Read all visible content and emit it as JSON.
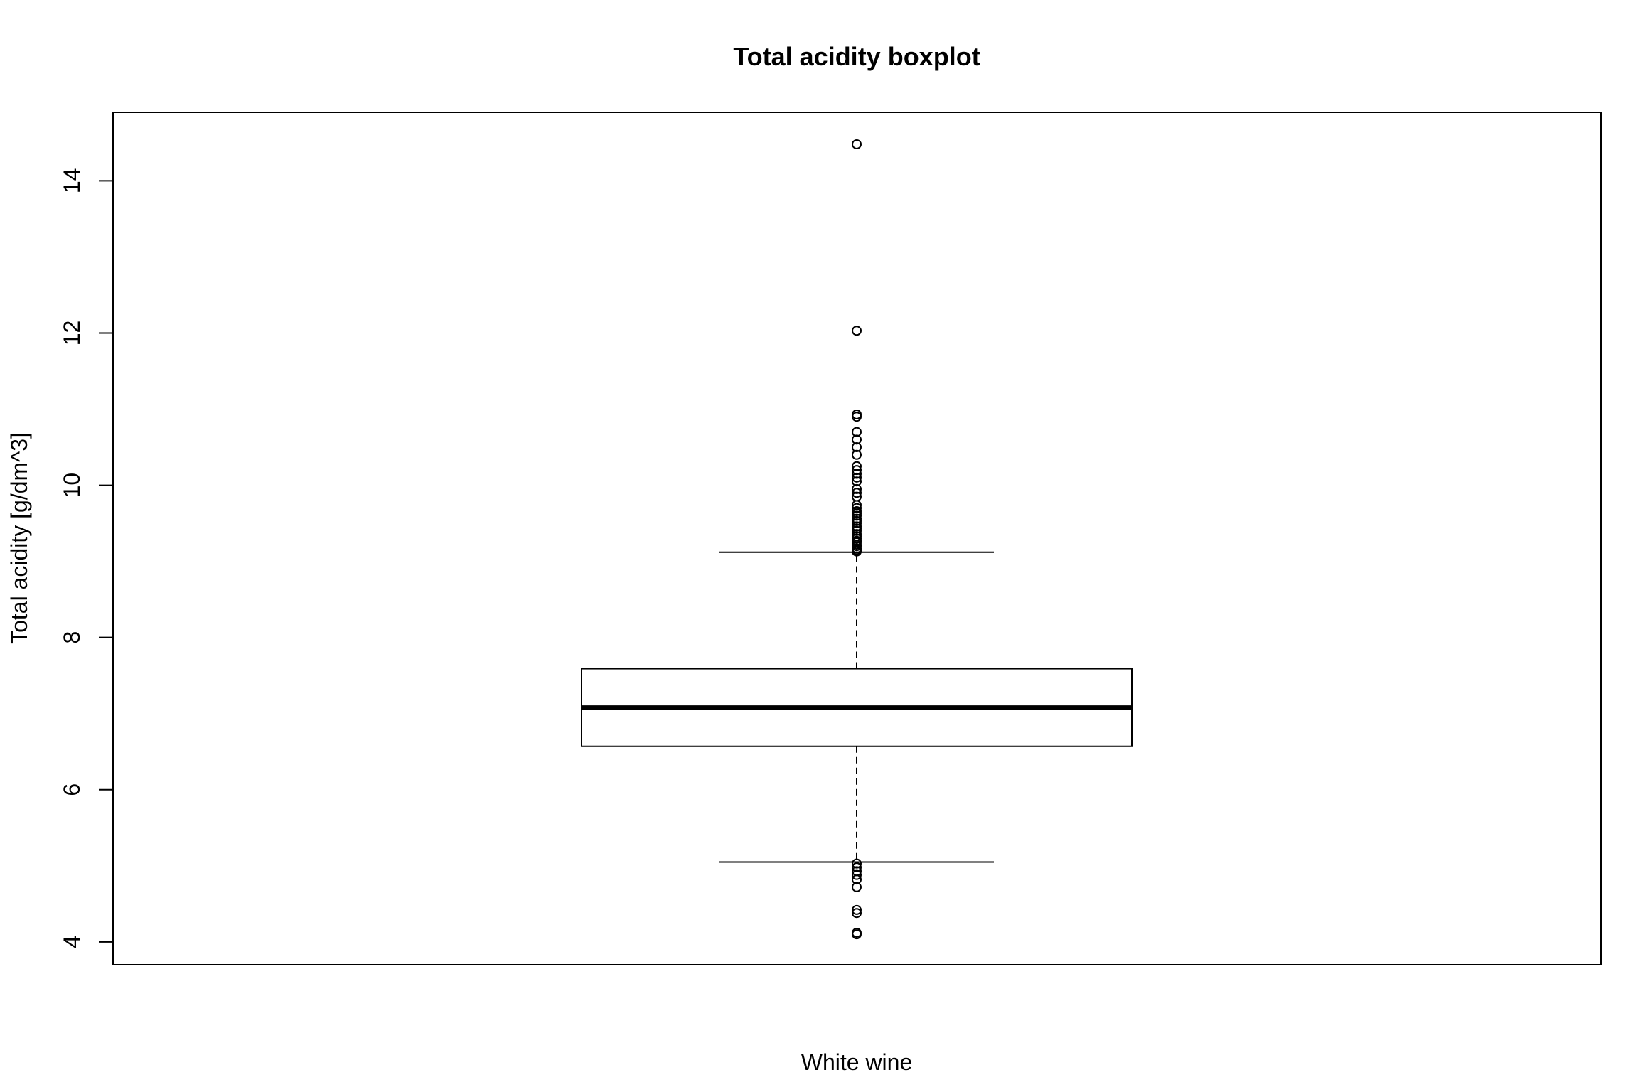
{
  "chart_data": {
    "type": "boxplot",
    "title": "Total acidity boxplot",
    "xlabel": "White wine",
    "ylabel": "Total acidity [g/dm^3]",
    "ylim": [
      3.7,
      14.9
    ],
    "yticks": [
      4,
      6,
      8,
      10,
      12,
      14
    ],
    "ytick_labels": [
      "4",
      "6",
      "8",
      "10",
      "12",
      "14"
    ],
    "grid": false,
    "box": {
      "category": "White wine",
      "whisker_low": 5.05,
      "q1": 6.57,
      "median": 7.08,
      "q3": 7.59,
      "whisker_high": 9.12
    },
    "outliers_high": [
      9.13,
      9.15,
      9.17,
      9.2,
      9.22,
      9.25,
      9.27,
      9.3,
      9.33,
      9.36,
      9.4,
      9.43,
      9.46,
      9.5,
      9.53,
      9.56,
      9.6,
      9.63,
      9.66,
      9.7,
      9.74,
      9.85,
      9.9,
      9.95,
      10.05,
      10.1,
      10.15,
      10.2,
      10.25,
      10.4,
      10.5,
      10.6,
      10.7,
      10.9,
      10.93,
      12.03,
      14.48
    ],
    "outliers_low": [
      5.03,
      4.98,
      4.93,
      4.88,
      4.82,
      4.72,
      4.42,
      4.38,
      4.1,
      4.12
    ]
  }
}
